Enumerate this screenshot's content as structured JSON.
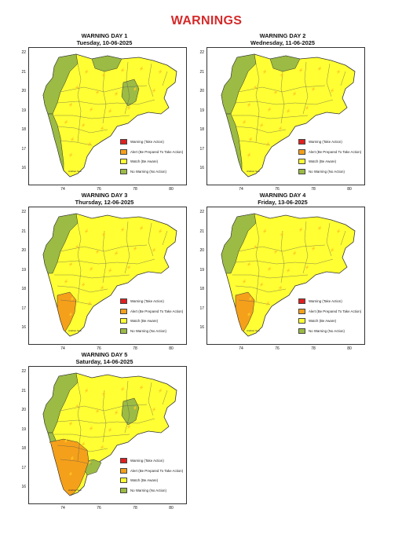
{
  "page_title": "WARNINGS",
  "colors": {
    "warning": "#e02020",
    "alert": "#f5a01a",
    "watch": "#ffff33",
    "no_warning": "#9bbb45",
    "title": "#d42a2a"
  },
  "legend": [
    {
      "key": "warning",
      "label": "Warning (Take Action)"
    },
    {
      "key": "alert",
      "label": "Alert (Be Prepared To Take Action)"
    },
    {
      "key": "watch",
      "label": "Watch (Be Aware)"
    },
    {
      "key": "no_warning",
      "label": "No Warning (No Action)"
    }
  ],
  "axes": {
    "y_ticks": [
      "22",
      "21",
      "20",
      "19",
      "18",
      "17",
      "16"
    ],
    "x_ticks": [
      "74",
      "76",
      "78",
      "80"
    ]
  },
  "panels": [
    {
      "title": "WARNING DAY 1",
      "subtitle": "Tuesday, 10-06-2025",
      "green_regions": [
        "north-west",
        "west-coast",
        "north",
        "central-east"
      ],
      "orange_regions": []
    },
    {
      "title": "WARNING DAY 2",
      "subtitle": "Wednesday, 11-06-2025",
      "green_regions": [
        "north-west",
        "west-coast",
        "north"
      ],
      "orange_regions": []
    },
    {
      "title": "WARNING DAY 3",
      "subtitle": "Thursday, 12-06-2025",
      "green_regions": [
        "north-west"
      ],
      "orange_regions": [
        "south-coast"
      ]
    },
    {
      "title": "WARNING DAY 4",
      "subtitle": "Friday, 13-06-2025",
      "green_regions": [
        "north-west"
      ],
      "orange_regions": [
        "south-coast"
      ]
    },
    {
      "title": "WARNING DAY 5",
      "subtitle": "Saturday, 14-06-2025",
      "green_regions": [
        "north-west",
        "west-coast",
        "central-east",
        "south-inland"
      ],
      "orange_regions": [
        "south-west-large"
      ]
    }
  ],
  "map_label": "Arabian Sea"
}
